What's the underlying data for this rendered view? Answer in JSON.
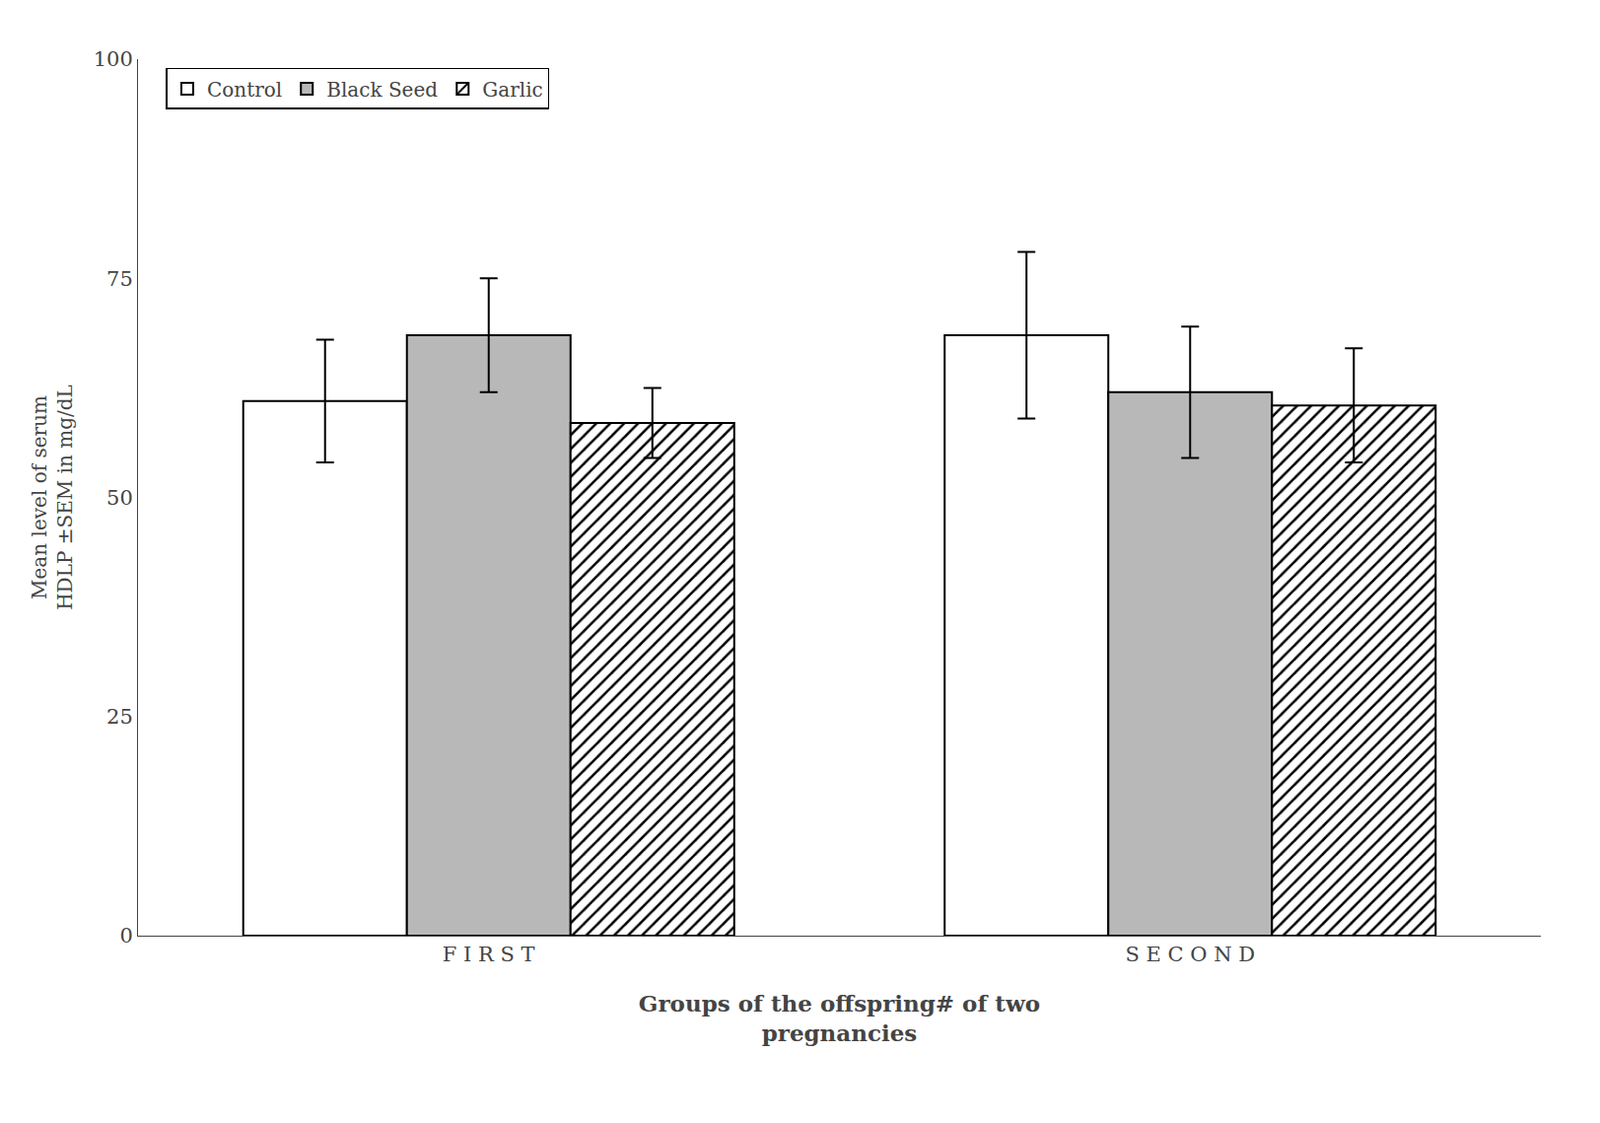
{
  "chart_data": {
    "type": "bar",
    "categories": [
      "F I R S T",
      "S E C O N D"
    ],
    "series": [
      {
        "name": "Control",
        "color": "#ffffff",
        "values": [
          61.0,
          68.5
        ],
        "errors": [
          7.0,
          9.5
        ]
      },
      {
        "name": "Black Seed",
        "color": "#b8b8b8",
        "values": [
          68.5,
          62.0
        ],
        "errors": [
          6.5,
          7.5
        ]
      },
      {
        "name": "Garlic",
        "color": "#ffffff",
        "values": [
          58.5,
          60.5
        ],
        "errors": [
          4.0,
          6.5
        ]
      }
    ],
    "xlabel": "Groups of the offspring# of two\npregnancies",
    "ylabel": "Mean level of serum\nHDLP ±SEM in mg/dL",
    "ylim": [
      0,
      100
    ],
    "yticks": [
      0,
      25,
      50,
      75,
      100
    ],
    "grid": false,
    "legend": "upper left"
  }
}
